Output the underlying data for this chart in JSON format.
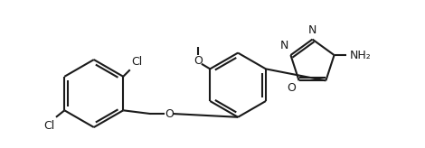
{
  "bg_color": "#ffffff",
  "line_color": "#1a1a1a",
  "line_width": 1.5,
  "font_size": 9,
  "xlim": [
    0.0,
    5.0
  ],
  "ylim": [
    -0.2,
    1.5
  ],
  "figsize": [
    4.7,
    1.64
  ],
  "dpi": 100,
  "label_Cl1": "Cl",
  "label_Cl2": "Cl",
  "label_O_ether": "O",
  "label_O_methoxy": "O",
  "label_methoxy_line": true,
  "label_N1": "N",
  "label_N2": "N",
  "label_O_oxa": "O",
  "label_NH2": "NH₂"
}
